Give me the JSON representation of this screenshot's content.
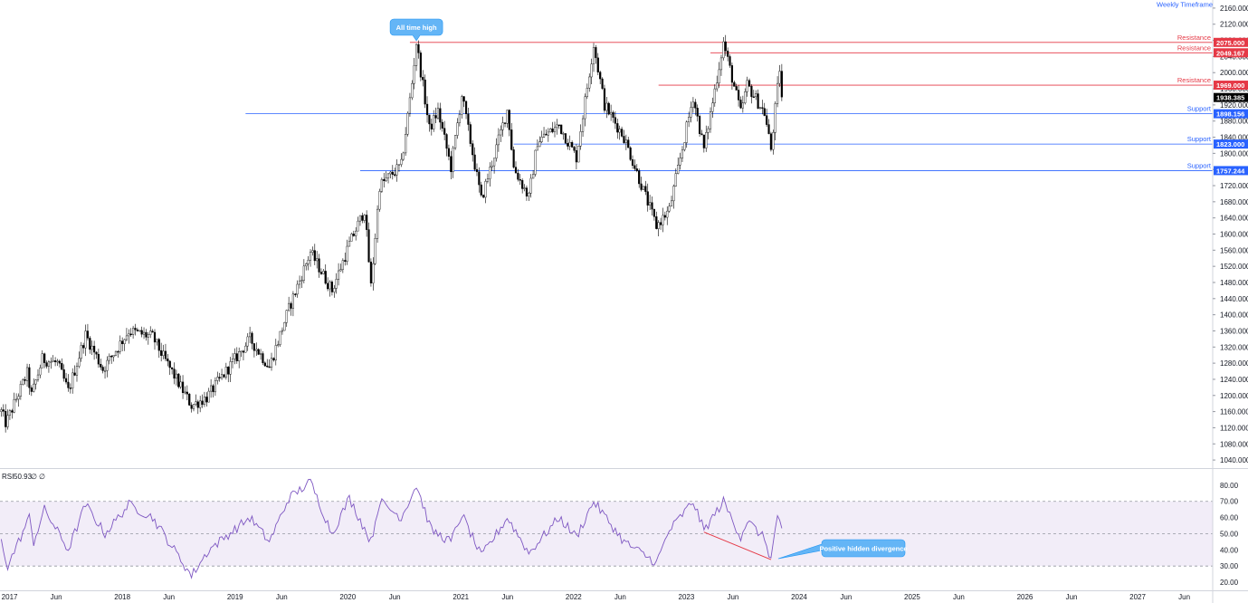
{
  "header": {
    "timeframe_label": "Weekly Timeframe"
  },
  "rsi_legend": {
    "name": "RSI",
    "value": "50.93",
    "extra1": "∅",
    "extra2": "∅"
  },
  "chart_data": [
    {
      "type": "candlestick",
      "title": "",
      "xlabel": "",
      "ylabel": "",
      "ylim": [
        1020,
        2180
      ],
      "x_range": [
        "2016-12",
        "2027-09"
      ],
      "y_ticks": [
        1040,
        1080,
        1120,
        1160,
        1200,
        1240,
        1280,
        1320,
        1360,
        1400,
        1440,
        1480,
        1520,
        1560,
        1600,
        1640,
        1680,
        1720,
        1760,
        1800,
        1840,
        1880,
        1920,
        1960,
        2000,
        2040,
        2080,
        2120,
        2160
      ],
      "y_tick_format": "0.000",
      "x_ticks": [
        {
          "date": "2017-01",
          "label": "2017"
        },
        {
          "date": "2017-06",
          "label": "Jun"
        },
        {
          "date": "2018-01",
          "label": "2018"
        },
        {
          "date": "2018-06",
          "label": "Jun"
        },
        {
          "date": "2019-01",
          "label": "2019"
        },
        {
          "date": "2019-06",
          "label": "Jun"
        },
        {
          "date": "2020-01",
          "label": "2020"
        },
        {
          "date": "2020-06",
          "label": "Jun"
        },
        {
          "date": "2021-01",
          "label": "2021"
        },
        {
          "date": "2021-06",
          "label": "Jun"
        },
        {
          "date": "2022-01",
          "label": "2022"
        },
        {
          "date": "2022-06",
          "label": "Jun"
        },
        {
          "date": "2023-01",
          "label": "2023"
        },
        {
          "date": "2023-06",
          "label": "Jun"
        },
        {
          "date": "2024-01",
          "label": "2024"
        },
        {
          "date": "2024-06",
          "label": "Jun"
        },
        {
          "date": "2025-01",
          "label": "2025"
        },
        {
          "date": "2025-06",
          "label": "Jun"
        },
        {
          "date": "2026-01",
          "label": "2026"
        },
        {
          "date": "2026-06",
          "label": "Jun"
        },
        {
          "date": "2027-01",
          "label": "2027"
        },
        {
          "date": "2027-06",
          "label": "Jun"
        }
      ],
      "price_path": [
        {
          "date": "2016-12-05",
          "close": 1160
        },
        {
          "date": "2016-12-20",
          "close": 1130
        },
        {
          "date": "2017-02-27",
          "close": 1255
        },
        {
          "date": "2017-03-13",
          "close": 1200
        },
        {
          "date": "2017-04-17",
          "close": 1290
        },
        {
          "date": "2017-06-05",
          "close": 1280
        },
        {
          "date": "2017-07-10",
          "close": 1210
        },
        {
          "date": "2017-09-04",
          "close": 1350
        },
        {
          "date": "2017-10-30",
          "close": 1265
        },
        {
          "date": "2018-01-22",
          "close": 1360
        },
        {
          "date": "2018-04-09",
          "close": 1345
        },
        {
          "date": "2018-05-14",
          "close": 1295
        },
        {
          "date": "2018-08-13",
          "close": 1175
        },
        {
          "date": "2018-10-01",
          "close": 1195
        },
        {
          "date": "2019-02-18",
          "close": 1340
        },
        {
          "date": "2019-04-22",
          "close": 1270
        },
        {
          "date": "2019-06-24",
          "close": 1415
        },
        {
          "date": "2019-09-02",
          "close": 1555
        },
        {
          "date": "2019-11-11",
          "close": 1460
        },
        {
          "date": "2020-01-06",
          "close": 1575
        },
        {
          "date": "2020-02-24",
          "close": 1660
        },
        {
          "date": "2020-03-16",
          "close": 1470
        },
        {
          "date": "2020-04-13",
          "close": 1720
        },
        {
          "date": "2020-06-22",
          "close": 1770
        },
        {
          "date": "2020-07-27",
          "close": 1975
        },
        {
          "date": "2020-08-10",
          "close": 2075
        },
        {
          "date": "2020-09-21",
          "close": 1860
        },
        {
          "date": "2020-10-19",
          "close": 1905
        },
        {
          "date": "2020-11-30",
          "close": 1765
        },
        {
          "date": "2021-01-04",
          "close": 1945
        },
        {
          "date": "2021-03-08",
          "close": 1685
        },
        {
          "date": "2021-06-01",
          "close": 1910
        },
        {
          "date": "2021-06-21",
          "close": 1765
        },
        {
          "date": "2021-08-09",
          "close": 1690
        },
        {
          "date": "2021-09-06",
          "close": 1830
        },
        {
          "date": "2021-11-15",
          "close": 1870
        },
        {
          "date": "2022-01-10",
          "close": 1790
        },
        {
          "date": "2022-03-07",
          "close": 2070
        },
        {
          "date": "2022-04-11",
          "close": 1920
        },
        {
          "date": "2022-06-13",
          "close": 1840
        },
        {
          "date": "2022-09-26",
          "close": 1620
        },
        {
          "date": "2022-11-07",
          "close": 1660
        },
        {
          "date": "2023-01-23",
          "close": 1940
        },
        {
          "date": "2023-02-27",
          "close": 1810
        },
        {
          "date": "2023-05-01",
          "close": 2075
        },
        {
          "date": "2023-06-26",
          "close": 1900
        },
        {
          "date": "2023-07-17",
          "close": 1970
        },
        {
          "date": "2023-09-11",
          "close": 1900
        },
        {
          "date": "2023-10-02",
          "close": 1810
        },
        {
          "date": "2023-10-30",
          "close": 2010
        },
        {
          "date": "2023-11-06",
          "close": 1938.385
        }
      ],
      "last_price": "1938.385",
      "levels": [
        {
          "label": "Resistance",
          "value": 2075.0,
          "tag": "2075.000",
          "kind": "resistance",
          "start": "2020-07-20"
        },
        {
          "label": "Resistance",
          "value": 2049.167,
          "tag": "2049.167",
          "kind": "resistance",
          "start": "2023-03-20"
        },
        {
          "label": "Resistance",
          "value": 1969.0,
          "tag": "1969.000",
          "kind": "resistance",
          "start": "2022-10-03"
        },
        {
          "label": "Support",
          "value": 1898.156,
          "tag": "1898.156",
          "kind": "support",
          "start": "2019-02-04"
        },
        {
          "label": "Support",
          "value": 1823.0,
          "tag": "1823.000",
          "kind": "support",
          "start": "2021-06-21"
        },
        {
          "label": "Support",
          "value": 1757.244,
          "tag": "1757.244",
          "kind": "support",
          "start": "2020-02-10"
        }
      ],
      "annotations": [
        {
          "text": "All time high",
          "date": "2020-08-10",
          "value": 2075,
          "position": "above"
        }
      ],
      "colors": {
        "resistance": "#e53946",
        "support": "#2962ff",
        "candle": "#000000",
        "last_price_tag": "#000000"
      }
    },
    {
      "type": "line",
      "title": "",
      "name": "RSI",
      "xlabel": "",
      "ylabel": "",
      "ylim": [
        15,
        90
      ],
      "y_ticks": [
        20,
        30,
        40,
        50,
        60,
        70,
        80
      ],
      "y_tick_format": "0.00",
      "band": [
        30,
        70
      ],
      "midline": 50,
      "path": [
        {
          "date": "2016-12-05",
          "value": 45
        },
        {
          "date": "2016-12-26",
          "value": 30
        },
        {
          "date": "2017-03-06",
          "value": 60
        },
        {
          "date": "2017-03-20",
          "value": 45
        },
        {
          "date": "2017-04-24",
          "value": 65
        },
        {
          "date": "2017-07-10",
          "value": 40
        },
        {
          "date": "2017-09-04",
          "value": 68
        },
        {
          "date": "2017-11-06",
          "value": 50
        },
        {
          "date": "2018-01-22",
          "value": 68
        },
        {
          "date": "2018-04-09",
          "value": 60
        },
        {
          "date": "2018-08-13",
          "value": 24
        },
        {
          "date": "2018-10-08",
          "value": 40
        },
        {
          "date": "2019-02-18",
          "value": 60
        },
        {
          "date": "2019-04-22",
          "value": 45
        },
        {
          "date": "2019-06-24",
          "value": 72
        },
        {
          "date": "2019-09-02",
          "value": 82
        },
        {
          "date": "2019-11-11",
          "value": 50
        },
        {
          "date": "2020-01-06",
          "value": 72
        },
        {
          "date": "2020-03-16",
          "value": 45
        },
        {
          "date": "2020-04-13",
          "value": 70
        },
        {
          "date": "2020-06-22",
          "value": 60
        },
        {
          "date": "2020-08-10",
          "value": 80
        },
        {
          "date": "2020-09-28",
          "value": 52
        },
        {
          "date": "2020-11-30",
          "value": 45
        },
        {
          "date": "2021-01-04",
          "value": 62
        },
        {
          "date": "2021-03-08",
          "value": 36
        },
        {
          "date": "2021-06-01",
          "value": 60
        },
        {
          "date": "2021-08-09",
          "value": 38
        },
        {
          "date": "2021-11-15",
          "value": 60
        },
        {
          "date": "2022-01-10",
          "value": 48
        },
        {
          "date": "2022-03-07",
          "value": 70
        },
        {
          "date": "2022-06-13",
          "value": 45
        },
        {
          "date": "2022-09-26",
          "value": 32
        },
        {
          "date": "2022-11-07",
          "value": 52
        },
        {
          "date": "2023-01-23",
          "value": 70
        },
        {
          "date": "2023-02-27",
          "value": 52
        },
        {
          "date": "2023-05-01",
          "value": 70
        },
        {
          "date": "2023-06-26",
          "value": 48
        },
        {
          "date": "2023-07-17",
          "value": 58
        },
        {
          "date": "2023-09-11",
          "value": 47
        },
        {
          "date": "2023-10-02",
          "value": 34
        },
        {
          "date": "2023-10-23",
          "value": 62
        },
        {
          "date": "2023-11-06",
          "value": 50.93
        }
      ],
      "divergence": {
        "from": {
          "date": "2023-02-27",
          "value": 51
        },
        "to": {
          "date": "2023-10-02",
          "value": 34
        }
      },
      "annotations": [
        {
          "text": "Positive hidden divergence",
          "date": "2023-10-02",
          "value": 34,
          "position": "right"
        }
      ],
      "colors": {
        "line": "#7e57c2",
        "band_fill": "#ede7f6",
        "divergence": "#e53946"
      }
    }
  ]
}
